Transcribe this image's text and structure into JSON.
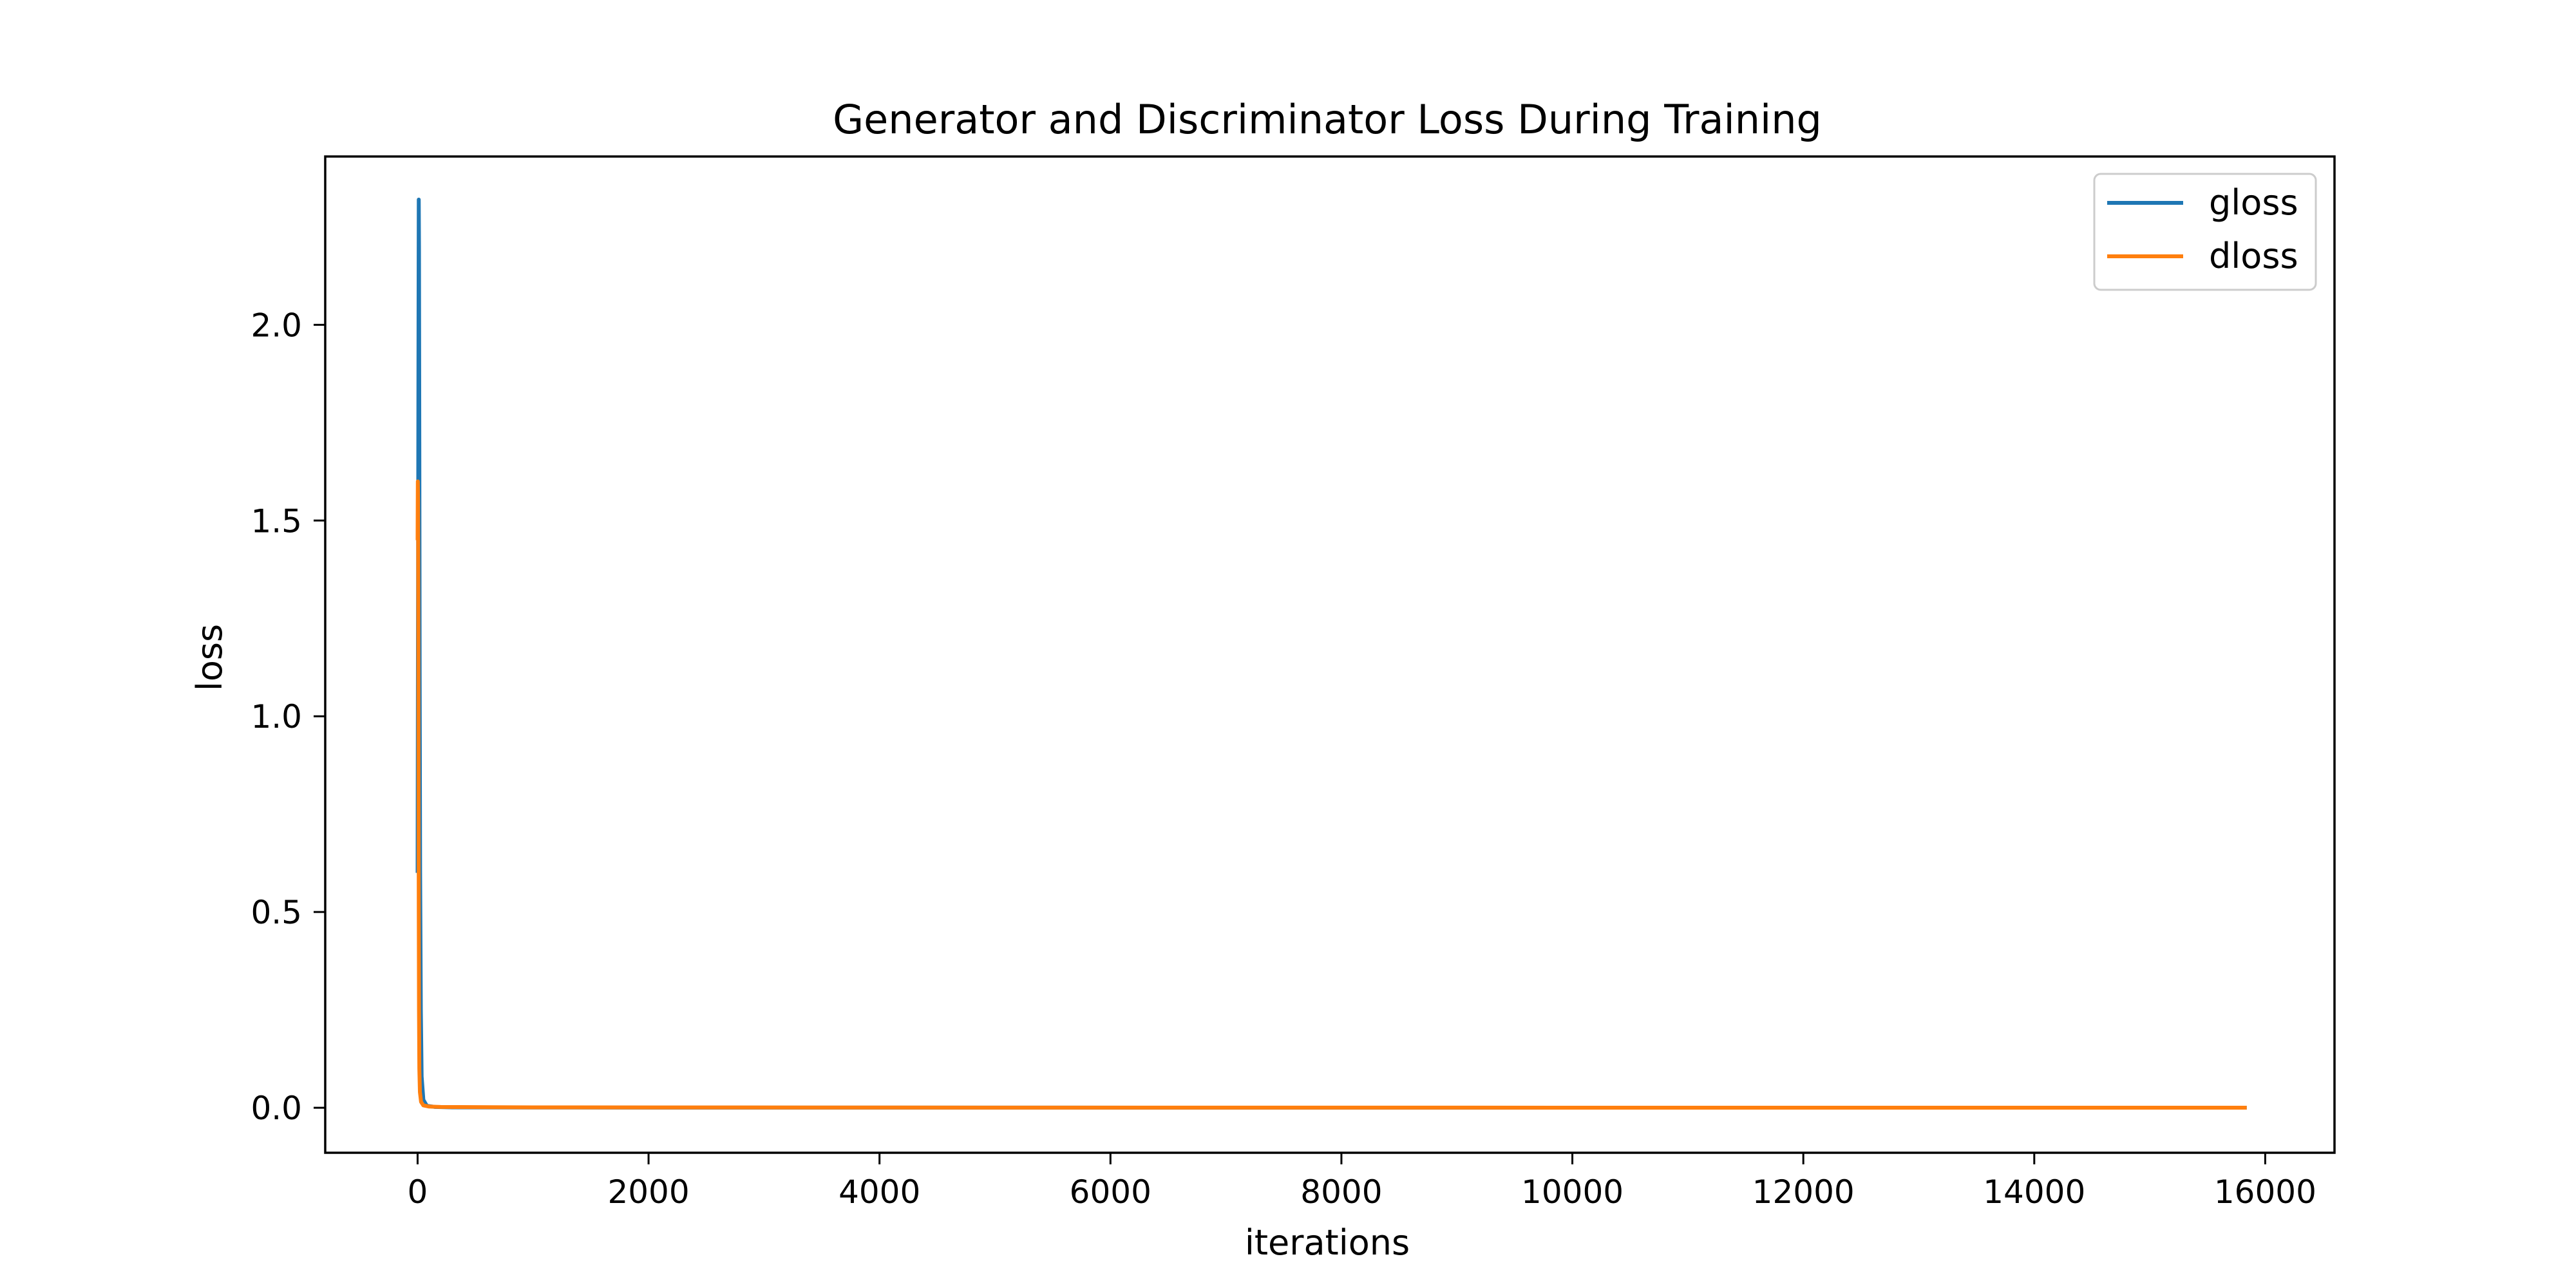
{
  "chart_data": {
    "type": "line",
    "title": "Generator and Discriminator Loss During Training",
    "xlabel": "iterations",
    "ylabel": "loss",
    "xlim": [
      -800,
      16600
    ],
    "ylim": [
      -0.115,
      2.43
    ],
    "x_ticks": [
      0,
      2000,
      4000,
      6000,
      8000,
      10000,
      12000,
      14000,
      16000
    ],
    "x_tick_labels": [
      "0",
      "2000",
      "4000",
      "6000",
      "8000",
      "10000",
      "12000",
      "14000",
      "16000"
    ],
    "y_ticks": [
      0.0,
      0.5,
      1.0,
      1.5,
      2.0
    ],
    "y_tick_labels": [
      "0.0",
      "0.5",
      "1.0",
      "1.5",
      "2.0"
    ],
    "grid": false,
    "legend_position": "top-right",
    "series": [
      {
        "name": "gloss",
        "color": "#1f77b4",
        "x": [
          0,
          5,
          8,
          10,
          12,
          15,
          18,
          22,
          28,
          35,
          50,
          80,
          150,
          300,
          1000,
          4000,
          8000,
          12000,
          15840
        ],
        "y": [
          0.6,
          1.5,
          2.0,
          2.32,
          2.2,
          1.7,
          1.1,
          0.6,
          0.25,
          0.08,
          0.02,
          0.005,
          0.002,
          0.001,
          0.0005,
          0.0003,
          0.0002,
          0.0002,
          0.0002
        ]
      },
      {
        "name": "dloss",
        "color": "#ff7f0e",
        "x": [
          0,
          2,
          4,
          6,
          8,
          10,
          12,
          15,
          20,
          30,
          50,
          100,
          200,
          1000,
          4000,
          8000,
          12000,
          15840
        ],
        "y": [
          1.45,
          1.6,
          1.55,
          1.3,
          0.9,
          0.5,
          0.25,
          0.1,
          0.04,
          0.015,
          0.006,
          0.003,
          0.002,
          0.001,
          0.0005,
          0.0003,
          0.0002,
          0.0002
        ]
      }
    ]
  }
}
